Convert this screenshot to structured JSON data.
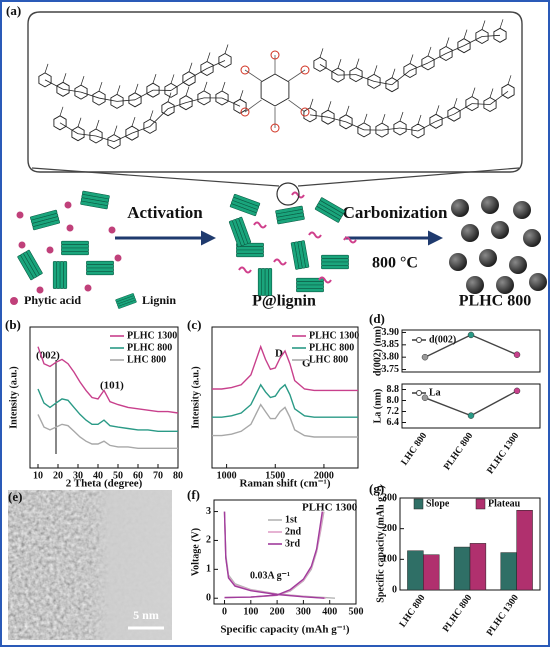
{
  "scheme": {
    "label": "(a)",
    "activation": "Activation",
    "carbonization": "Carbonization",
    "temperature": "800 °C",
    "legend": [
      "Phytic acid",
      "Lignin"
    ],
    "products": [
      "P@lignin",
      "PLHC 800"
    ]
  },
  "micrograph": {
    "label": "(e)",
    "scale_bar": "5 nm"
  },
  "chart_data": [
    {
      "type": "line",
      "label": "(b)",
      "x_label": "2 Theta (degree)",
      "y_label": "Intensity (a.u.)",
      "x": [
        10,
        13,
        16,
        19,
        22,
        25,
        28,
        31,
        34,
        37,
        40,
        43,
        46,
        50,
        55,
        60,
        65,
        70,
        75,
        80
      ],
      "xlim": [
        6,
        80
      ],
      "xticks": [
        10,
        20,
        30,
        40,
        50,
        60,
        70,
        80
      ],
      "ylim": [
        0,
        10
      ],
      "series": [
        {
          "name": "PLHC 1300",
          "color": "#c8408c",
          "values": [
            8.6,
            7.4,
            7.2,
            7.5,
            7.7,
            7.4,
            6.8,
            6.1,
            5.5,
            5.0,
            4.9,
            5.5,
            4.7,
            4.5,
            4.3,
            4.2,
            4.1,
            4.0,
            4.0,
            3.9
          ]
        },
        {
          "name": "PLHC 800",
          "color": "#2a9a86",
          "values": [
            5.6,
            4.6,
            4.3,
            4.6,
            4.9,
            4.8,
            4.3,
            3.8,
            3.4,
            3.1,
            3.1,
            3.4,
            3.0,
            2.9,
            2.8,
            2.7,
            2.7,
            2.6,
            2.6,
            2.6
          ]
        },
        {
          "name": "LHC 800",
          "color": "#a8a8a8",
          "values": [
            3.8,
            2.9,
            2.7,
            2.9,
            3.1,
            3.0,
            2.6,
            2.2,
            1.9,
            1.7,
            1.7,
            1.9,
            1.6,
            1.5,
            1.5,
            1.4,
            1.4,
            1.4,
            1.4,
            1.4
          ]
        }
      ],
      "annotations": [
        "(002)",
        "(101)"
      ]
    },
    {
      "type": "line",
      "label": "(c)",
      "x_label": "Raman shift (cm⁻¹)",
      "y_label": "Intensity (a.u.)",
      "x": [
        850,
        950,
        1050,
        1150,
        1250,
        1300,
        1350,
        1400,
        1450,
        1500,
        1550,
        1600,
        1650,
        1700,
        1800,
        1900,
        2000,
        2100,
        2200,
        2350
      ],
      "xlim": [
        850,
        2350
      ],
      "xticks": [
        1000,
        1500,
        2000
      ],
      "ylim": [
        0,
        10
      ],
      "series": [
        {
          "name": "PLHC 1300",
          "color": "#c8408c",
          "values": [
            5.6,
            5.6,
            5.7,
            5.9,
            6.6,
            7.6,
            8.6,
            7.7,
            7.0,
            7.1,
            7.8,
            8.3,
            7.4,
            6.2,
            5.6,
            5.5,
            5.5,
            5.5,
            5.5,
            5.5
          ]
        },
        {
          "name": "PLHC 800",
          "color": "#2a9a86",
          "values": [
            3.6,
            3.6,
            3.7,
            3.9,
            4.5,
            5.2,
            5.9,
            5.4,
            5.0,
            5.1,
            5.6,
            5.9,
            5.2,
            4.2,
            3.7,
            3.6,
            3.6,
            3.6,
            3.6,
            3.6
          ]
        },
        {
          "name": "LHC 800",
          "color": "#a8a8a8",
          "values": [
            2.3,
            2.3,
            2.4,
            2.6,
            3.1,
            3.8,
            4.5,
            4.0,
            3.5,
            3.5,
            4.0,
            4.3,
            3.6,
            2.7,
            2.3,
            2.2,
            2.2,
            2.2,
            2.2,
            2.2
          ]
        }
      ],
      "annotations": [
        "D",
        "G"
      ]
    },
    {
      "type": "line",
      "label": "(d)",
      "y_label": "d(002) (nm)",
      "ylim": [
        3.74,
        3.91
      ],
      "yticks": [
        3.75,
        {
          "value": 3.8,
          "label": "3.80"
        },
        3.85,
        {
          "value": 3.9,
          "label": "3.90"
        }
      ],
      "point_colors": [
        "#9a9a9a",
        "#2a9a86",
        "#c8408c"
      ],
      "series": [
        {
          "name": "d(002)",
          "color": "#444",
          "values": [
            3.8,
            3.89,
            3.81
          ]
        }
      ]
    },
    {
      "type": "line",
      "y_label": "La (nm)",
      "ylim": [
        6.0,
        9.2
      ],
      "yticks": [
        6.4,
        7.2,
        {
          "value": 8,
          "label": "8.0"
        },
        8.8
      ],
      "categories": [
        "LHC 800",
        "PLHC 800",
        "PLHC 1300"
      ],
      "point_colors": [
        "#9a9a9a",
        "#2a9a86",
        "#c8408c"
      ],
      "series": [
        {
          "name": "La",
          "color": "#444",
          "values": [
            8.2,
            6.9,
            8.7
          ]
        }
      ]
    },
    {
      "type": "line",
      "label": "(f)",
      "title": "PLHC 1300",
      "note": "0.03A g⁻¹",
      "x_label": "Specific capacity (mAh g⁻¹)",
      "y_label": "Voltage (V)",
      "xlim": [
        -40,
        500
      ],
      "xticks": [
        0,
        100,
        200,
        300,
        400,
        500
      ],
      "ylim": [
        -0.2,
        3.4
      ],
      "yticks": [
        0,
        1,
        2,
        3
      ],
      "series": [
        {
          "name": "1st",
          "color": "#b4b4b4",
          "x": [
            0,
            5,
            15,
            40,
            100,
            200,
            300,
            420,
            null,
            0,
            100,
            200,
            250,
            300,
            330,
            350,
            365,
            378
          ],
          "values": [
            3.0,
            1.5,
            0.8,
            0.5,
            0.3,
            0.15,
            0.07,
            0.0,
            null,
            0.02,
            0.04,
            0.1,
            0.25,
            0.6,
            1.0,
            1.6,
            2.3,
            3.0
          ]
        },
        {
          "name": "2nd",
          "color": "#e0a0c8",
          "x": [
            0,
            5,
            15,
            40,
            100,
            200,
            300,
            385,
            null,
            0,
            100,
            200,
            250,
            300,
            330,
            350,
            365,
            375
          ],
          "values": [
            3.0,
            1.4,
            0.75,
            0.45,
            0.28,
            0.14,
            0.06,
            0.0,
            null,
            0.02,
            0.04,
            0.1,
            0.27,
            0.62,
            1.05,
            1.65,
            2.35,
            3.0
          ]
        },
        {
          "name": "3rd",
          "color": "#a03c9c",
          "x": [
            0,
            5,
            15,
            40,
            100,
            200,
            300,
            380,
            null,
            0,
            100,
            200,
            250,
            300,
            330,
            350,
            362,
            372
          ],
          "values": [
            3.0,
            1.4,
            0.7,
            0.42,
            0.26,
            0.13,
            0.05,
            0.0,
            null,
            0.02,
            0.04,
            0.11,
            0.3,
            0.66,
            1.1,
            1.7,
            2.4,
            3.0
          ]
        }
      ]
    },
    {
      "type": "bar",
      "label": "(g)",
      "y_label": "Specific capacity (mAh g⁻¹)",
      "categories": [
        "LHC 800",
        "PLHC 800",
        "PLHC 1300"
      ],
      "ylim": [
        0,
        300
      ],
      "yticks": [
        0,
        100,
        200,
        300
      ],
      "series": [
        {
          "name": "Slope",
          "color": "#2f6f66",
          "values": [
            128,
            140,
            122
          ]
        },
        {
          "name": "Plateau",
          "color": "#b0306e",
          "values": [
            115,
            152,
            260
          ]
        }
      ]
    }
  ]
}
